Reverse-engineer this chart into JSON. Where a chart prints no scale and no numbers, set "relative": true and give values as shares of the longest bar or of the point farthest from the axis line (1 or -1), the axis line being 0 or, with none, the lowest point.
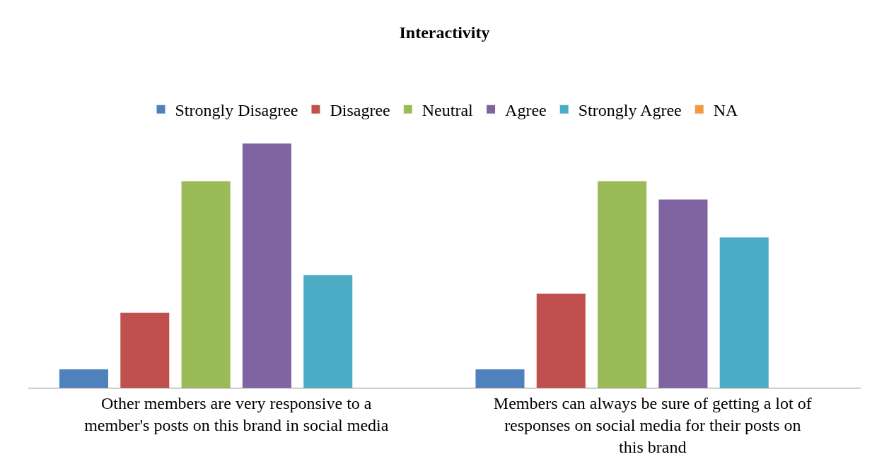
{
  "chart_data": {
    "type": "bar",
    "title": "Interactivity",
    "relative": true,
    "legend": "top",
    "grid": false,
    "categories": [
      "Other members are very responsive to a member's posts on this brand in social media",
      "Members can always be sure of getting a lot of responses on social media for their posts on this brand"
    ],
    "series": [
      {
        "name": "Strongly Disagree",
        "color": "#4f81bd",
        "values": [
          0.075,
          0.075
        ]
      },
      {
        "name": "Disagree",
        "color": "#c0504d",
        "values": [
          0.307,
          0.385
        ]
      },
      {
        "name": "Neutral",
        "color": "#9bbb59",
        "values": [
          0.846,
          0.846
        ]
      },
      {
        "name": "Agree",
        "color": "#8064a2",
        "values": [
          1,
          0.771
        ]
      },
      {
        "name": "Strongly Agree",
        "color": "#4bacc6",
        "values": [
          0.461,
          0.615
        ]
      },
      {
        "name": "NA",
        "color": "#f79646",
        "values": [
          0,
          0
        ]
      }
    ]
  }
}
